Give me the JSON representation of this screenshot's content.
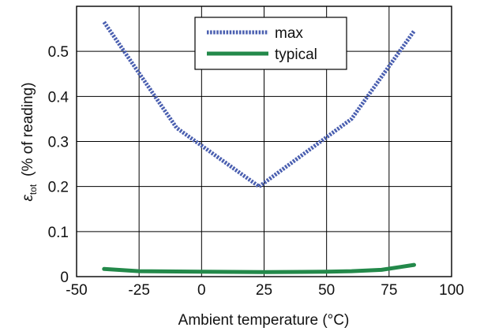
{
  "chart_data": {
    "type": "line",
    "xlabel": "Ambient temperature  (°C)",
    "ylabel_symbol": "ε",
    "ylabel_subscript": "tot",
    "ylabel_rest": "(% of reading)",
    "xlim": [
      -50,
      100
    ],
    "ylim": [
      0,
      0.6
    ],
    "x_ticks": [
      -50,
      -25,
      0,
      25,
      50,
      75,
      100
    ],
    "x_tick_labels": [
      "-50",
      "-25",
      "0",
      "25",
      "50",
      "75",
      "100"
    ],
    "y_ticks": [
      0,
      0.1,
      0.2,
      0.3,
      0.4,
      0.5
    ],
    "y_tick_labels": [
      "0",
      "0.1",
      "0.2",
      "0.3",
      "0.4",
      "0.5"
    ],
    "grid": true,
    "legend_position": "top-center",
    "series": [
      {
        "name": "max",
        "color": "#4a5fb0",
        "style": "dotted",
        "x": [
          -39,
          -10,
          23,
          60,
          85
        ],
        "y": [
          0.565,
          0.33,
          0.2,
          0.35,
          0.545
        ]
      },
      {
        "name": "typical",
        "color": "#23894a",
        "style": "solid",
        "x": [
          -39,
          -25,
          0,
          25,
          50,
          60,
          72,
          85
        ],
        "y": [
          0.017,
          0.012,
          0.011,
          0.01,
          0.011,
          0.012,
          0.015,
          0.026
        ]
      }
    ]
  }
}
